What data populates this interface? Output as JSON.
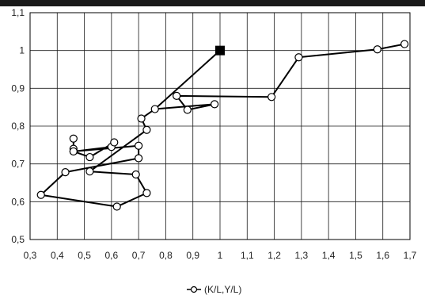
{
  "chart_data": {
    "type": "line",
    "title": "",
    "xlabel": "",
    "ylabel": "",
    "xlim": [
      0.3,
      1.7
    ],
    "ylim": [
      0.5,
      1.1
    ],
    "x_ticks": [
      0.3,
      0.4,
      0.5,
      0.6,
      0.7,
      0.8,
      0.9,
      1.0,
      1.1,
      1.2,
      1.3,
      1.4,
      1.5,
      1.6,
      1.7
    ],
    "x_tick_labels": [
      "0,3",
      "0,4",
      "0,5",
      "0,6",
      "0,7",
      "0,8",
      "0,9",
      "1",
      "1,1",
      "1,2",
      "1,3",
      "1,4",
      "1,5",
      "1,6",
      "1,7"
    ],
    "y_ticks": [
      0.5,
      0.6,
      0.7,
      0.8,
      0.9,
      1.0,
      1.1
    ],
    "y_tick_labels": [
      "0,5",
      "0,6",
      "0,7",
      "0,8",
      "0,9",
      "1",
      "1,1"
    ],
    "grid": true,
    "legend_position": "bottom-center",
    "series": [
      {
        "name": "(K/L,Y/L)",
        "color": "#000000",
        "marker": "open-circle",
        "points": [
          {
            "x": 0.46,
            "y": 0.767
          },
          {
            "x": 0.46,
            "y": 0.74
          },
          {
            "x": 0.46,
            "y": 0.733
          },
          {
            "x": 0.6,
            "y": 0.745
          },
          {
            "x": 0.61,
            "y": 0.757
          },
          {
            "x": 0.52,
            "y": 0.718
          },
          {
            "x": 0.46,
            "y": 0.733
          },
          {
            "x": 0.7,
            "y": 0.748
          },
          {
            "x": 0.7,
            "y": 0.715
          },
          {
            "x": 0.43,
            "y": 0.678
          },
          {
            "x": 0.34,
            "y": 0.618
          },
          {
            "x": 0.62,
            "y": 0.587
          },
          {
            "x": 0.73,
            "y": 0.623
          },
          {
            "x": 0.69,
            "y": 0.672
          },
          {
            "x": 0.52,
            "y": 0.68
          },
          {
            "x": 0.73,
            "y": 0.79
          },
          {
            "x": 0.71,
            "y": 0.82
          },
          {
            "x": 0.76,
            "y": 0.845
          },
          {
            "x": 0.98,
            "y": 0.858
          },
          {
            "x": 0.88,
            "y": 0.843
          },
          {
            "x": 0.84,
            "y": 0.88
          },
          {
            "x": 1.19,
            "y": 0.877
          },
          {
            "x": 1.29,
            "y": 0.982
          },
          {
            "x": 1.58,
            "y": 1.003
          },
          {
            "x": 1.68,
            "y": 1.017
          }
        ]
      }
    ],
    "reference_point": {
      "x": 1.0,
      "y": 1.0,
      "marker": "filled-square",
      "color": "#000000"
    }
  }
}
